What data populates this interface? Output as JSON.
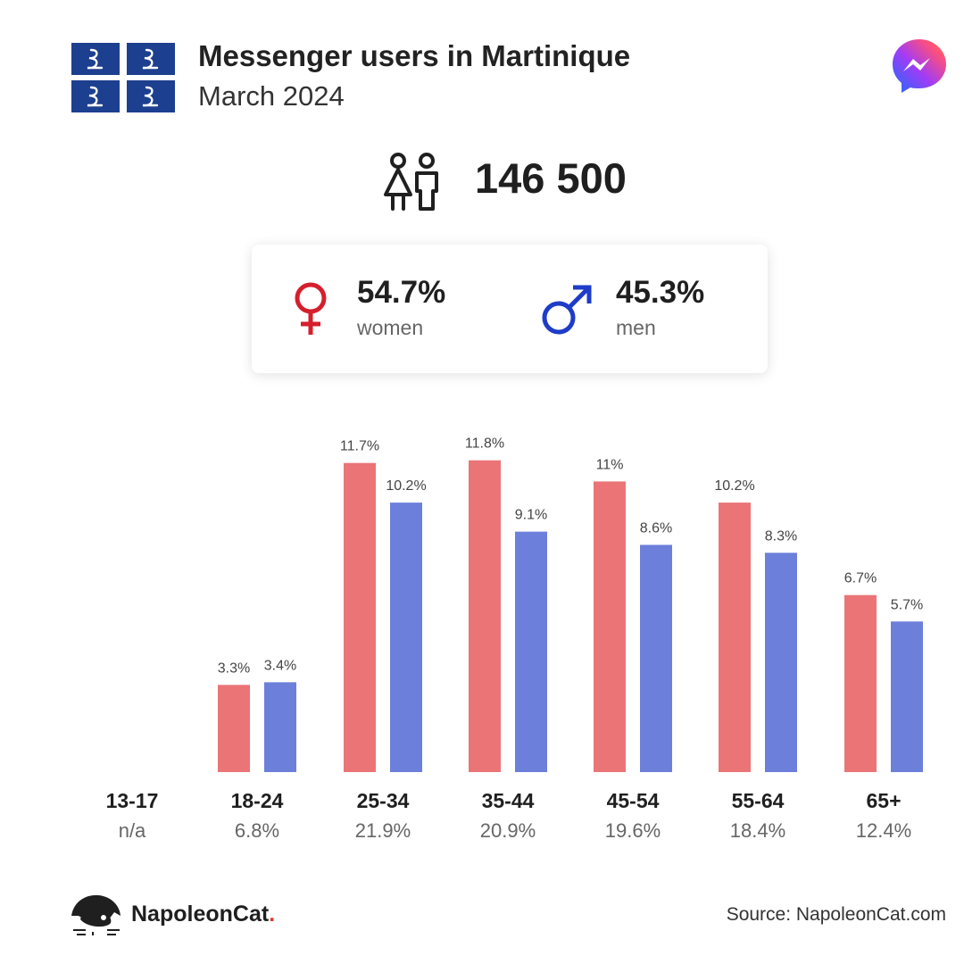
{
  "header": {
    "title": "Messenger users in Martinique",
    "subtitle": "March 2024"
  },
  "total_users": "146 500",
  "gender": {
    "women": {
      "pct": "54.7%",
      "label": "women",
      "color": "#d61f2c"
    },
    "men": {
      "pct": "45.3%",
      "label": "men",
      "color": "#1e3cc8"
    }
  },
  "colors": {
    "women_bar": "#eb7477",
    "men_bar": "#6c7fdb",
    "flag_blue": "#1d3f8f"
  },
  "icons": {
    "flag": "martinique-flag-icon",
    "app": "messenger-logo-icon",
    "people": "people-icon",
    "female": "female-symbol-icon",
    "male": "male-symbol-icon",
    "brand": "napoleoncat-logo-icon"
  },
  "chart_data": {
    "type": "bar",
    "categories": [
      "13-17",
      "18-24",
      "25-34",
      "35-44",
      "45-54",
      "55-64",
      "65+"
    ],
    "category_shares": [
      "n/a",
      "6.8%",
      "21.9%",
      "20.9%",
      "19.6%",
      "18.4%",
      "12.4%"
    ],
    "series": [
      {
        "name": "women",
        "values": [
          null,
          3.3,
          11.7,
          11.8,
          11,
          10.2,
          6.7
        ],
        "labels": [
          "",
          "3.3%",
          "11.7%",
          "11.8%",
          "11%",
          "10.2%",
          "6.7%"
        ]
      },
      {
        "name": "men",
        "values": [
          null,
          3.4,
          10.2,
          9.1,
          8.6,
          8.3,
          5.7
        ],
        "labels": [
          "",
          "3.4%",
          "10.2%",
          "9.1%",
          "8.6%",
          "8.3%",
          "5.7%"
        ]
      }
    ],
    "ylim": [
      0,
      12
    ],
    "grid": false
  },
  "footer": {
    "brand_name": "NapoleonCat",
    "brand_dot": ".",
    "source": "Source: NapoleonCat.com"
  }
}
